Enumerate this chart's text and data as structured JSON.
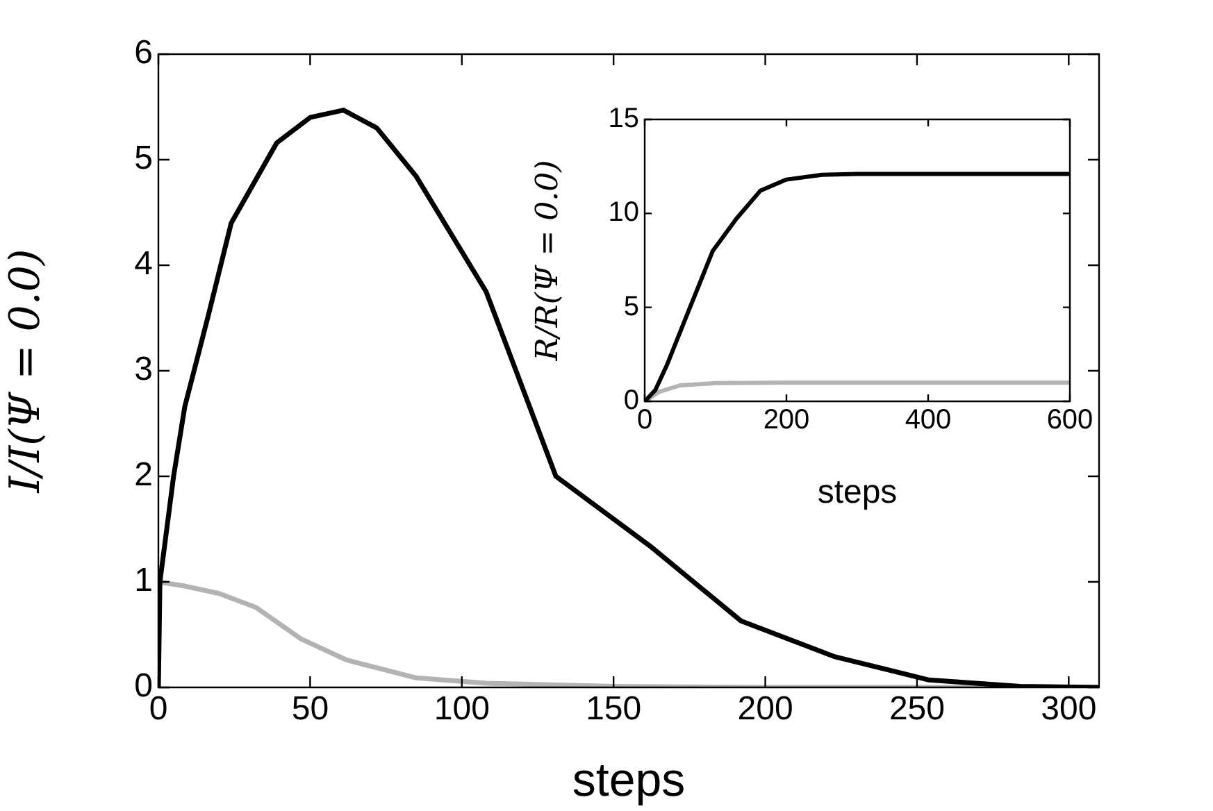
{
  "chart_data": [
    {
      "type": "line",
      "xlabel": "steps",
      "ylabel": "I/I(Ψ = 0.0)",
      "xlim": [
        0,
        310
      ],
      "ylim": [
        0,
        6
      ],
      "xticks": [
        0,
        50,
        100,
        150,
        200,
        250,
        300
      ],
      "yticks": [
        0,
        1,
        2,
        3,
        4,
        5,
        6
      ],
      "series": [
        {
          "color": "#000000",
          "x": [
            0,
            0.5,
            5,
            8.7,
            16.5,
            24,
            39,
            50,
            61,
            72,
            85,
            108,
            131,
            162,
            192,
            223,
            254,
            284,
            310
          ],
          "values": [
            0,
            1,
            2,
            2.66,
            3.53,
            4.4,
            5.16,
            5.4,
            5.47,
            5.3,
            4.84,
            3.75,
            2.0,
            1.34,
            0.63,
            0.29,
            0.07,
            0.01,
            0
          ]
        },
        {
          "color": "#b3b3b3",
          "x": [
            0,
            8.7,
            20,
            32,
            47,
            62,
            85,
            108,
            150,
            200,
            310
          ],
          "values": [
            1,
            0.96,
            0.89,
            0.76,
            0.46,
            0.26,
            0.09,
            0.04,
            0.01,
            0,
            0
          ]
        }
      ]
    },
    {
      "type": "line",
      "xlabel": "steps",
      "ylabel": "R/R(Ψ = 0.0)",
      "xlim": [
        0,
        600
      ],
      "ylim": [
        0,
        15
      ],
      "xticks": [
        0,
        200,
        400,
        600
      ],
      "yticks": [
        0,
        5,
        10,
        15
      ],
      "series": [
        {
          "color": "#000000",
          "x": [
            0,
            15,
            31,
            65,
            96,
            129,
            163,
            200,
            250,
            300,
            600
          ],
          "values": [
            0,
            0.6,
            1.9,
            5.1,
            8.0,
            9.7,
            11.2,
            11.8,
            12.05,
            12.1,
            12.1
          ]
        },
        {
          "color": "#b3b3b3",
          "x": [
            0,
            20,
            50,
            100,
            200,
            600
          ],
          "values": [
            0,
            0.5,
            0.85,
            0.97,
            1.0,
            1.0
          ]
        }
      ]
    }
  ]
}
